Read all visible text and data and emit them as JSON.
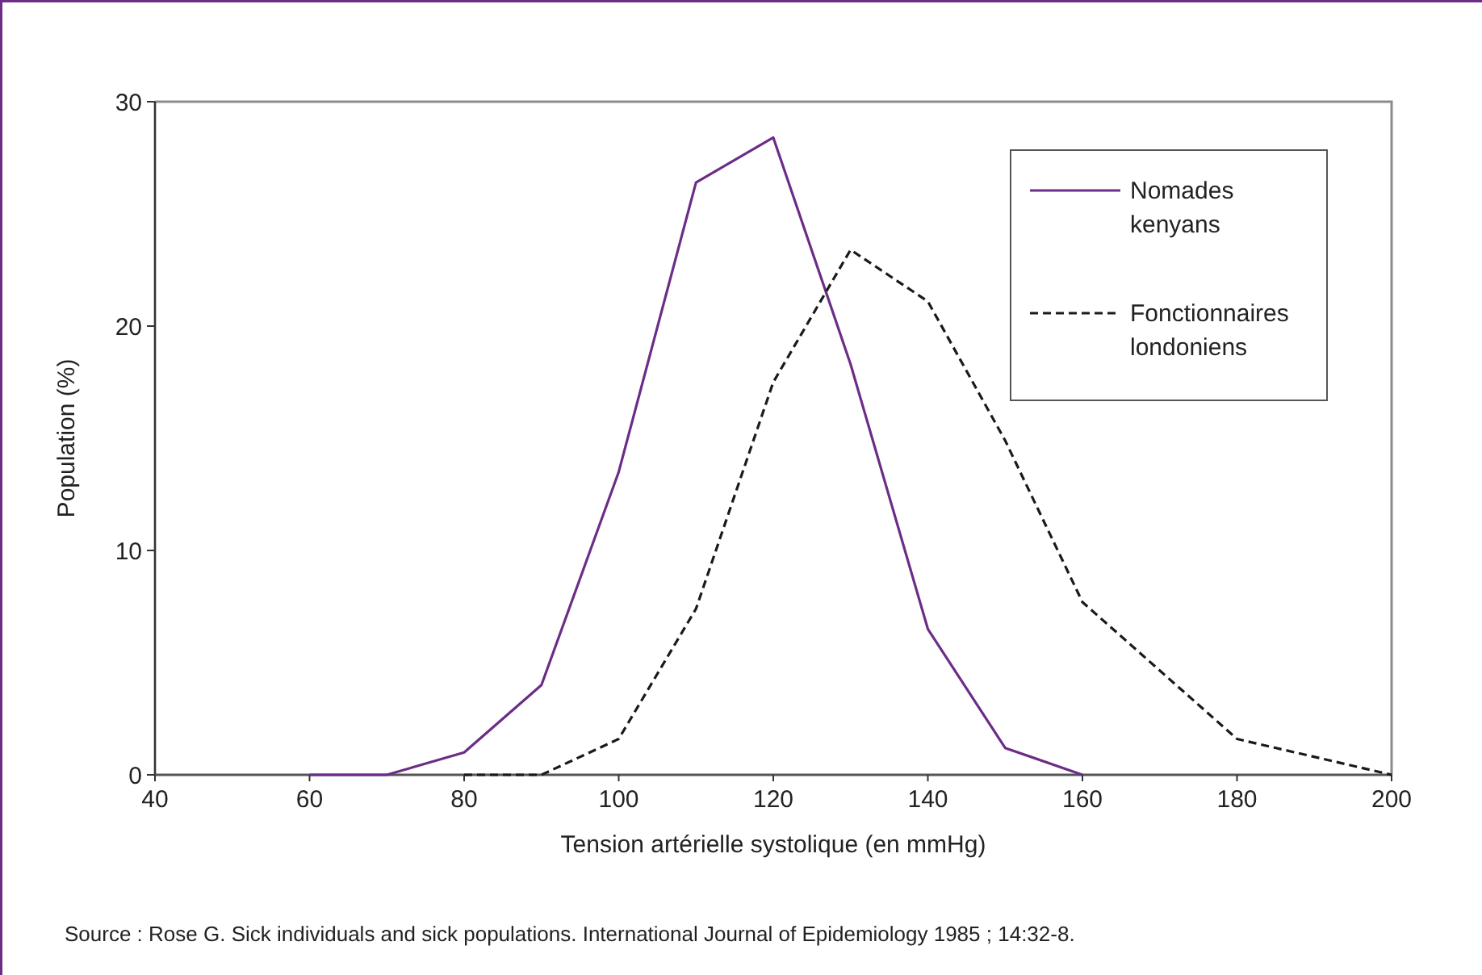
{
  "chart_data": {
    "type": "line",
    "xlabel": "Tension artérielle systolique (en mmHg)",
    "ylabel": "Population (%)",
    "xlim": [
      40,
      200
    ],
    "xticks": [
      40,
      60,
      80,
      100,
      120,
      140,
      160,
      180,
      200
    ],
    "ylim": [
      0,
      30
    ],
    "yticks": [
      0,
      10,
      20,
      30
    ],
    "grid": false,
    "legend": "top right",
    "marker": "none",
    "annotations": [
      "Source : Rose G. Sick individuals and sick populations. International Journal of Epidemiology 1985 ; 14:32-8."
    ],
    "series": [
      {
        "name": "Nomades kenyans",
        "color": "#6b2d87",
        "line_style": "solid",
        "x": [
          60,
          70,
          80,
          90,
          100,
          110,
          120,
          130,
          140,
          150,
          160
        ],
        "values": [
          0,
          0,
          1,
          4,
          13.5,
          26.4,
          28.4,
          18.3,
          6.5,
          1.2,
          0
        ]
      },
      {
        "name": "Fonctionnaires londoniens",
        "color": "#1a1a1a",
        "line_style": "dashed",
        "x": [
          80,
          90,
          100,
          110,
          120,
          130,
          140,
          150,
          160,
          180,
          200
        ],
        "values": [
          0,
          0,
          1.6,
          7.4,
          17.5,
          23.4,
          21.1,
          14.9,
          7.7,
          1.6,
          0
        ]
      }
    ]
  }
}
